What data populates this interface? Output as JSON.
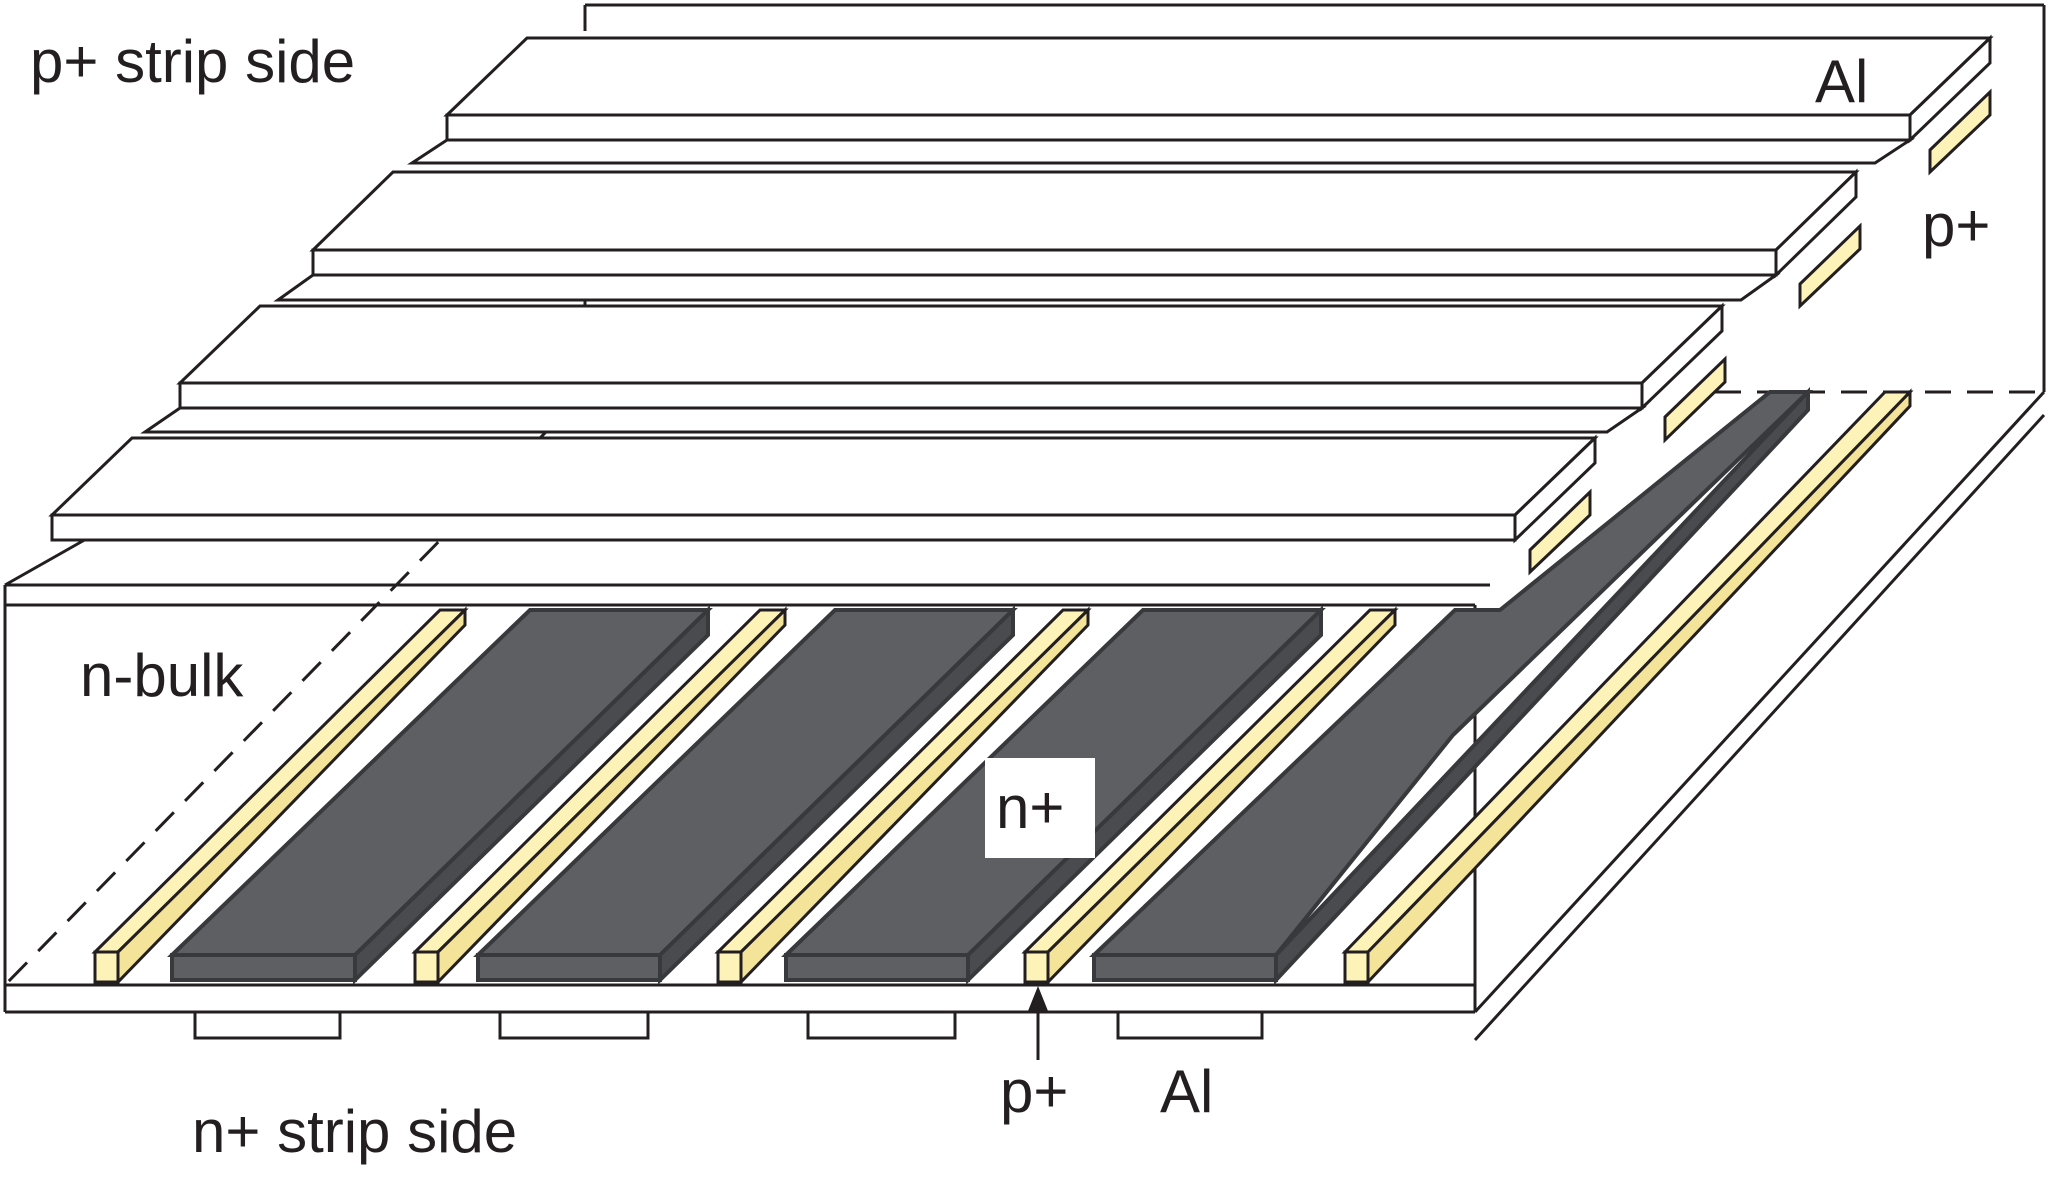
{
  "labels": {
    "p_strip_side": "p+ strip side",
    "al_top": "Al",
    "p_plus_right": "p+",
    "n_bulk": "n-bulk",
    "n_plus": "n+",
    "n_strip_side": "n+ strip side",
    "p_plus_bottom": "p+",
    "al_bottom": "Al"
  },
  "colors": {
    "outline": "#231f20",
    "n_plus_fill": "#5e5f63",
    "n_plus_edge": "#38393c",
    "p_stop_fill": "#fdf3b9",
    "background": "#ffffff"
  }
}
